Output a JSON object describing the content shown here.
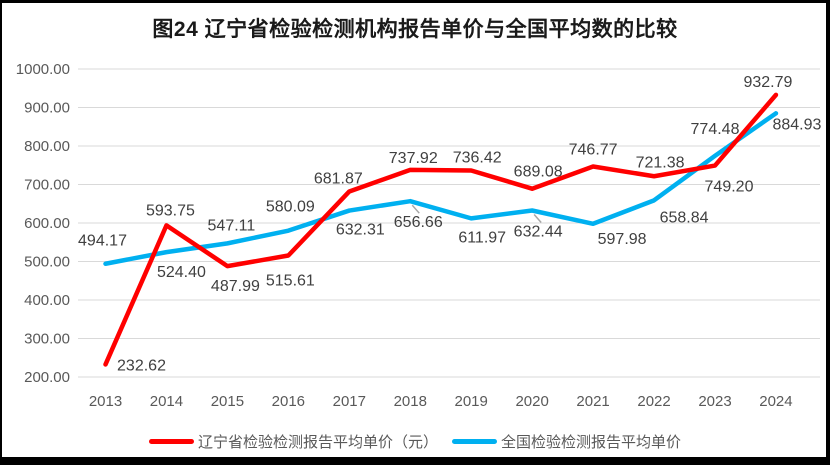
{
  "title": "图24 辽宁省检验检测机构报告单价与全国平均数的比较",
  "chart_data": {
    "type": "line",
    "title": "图24 辽宁省检验检测机构报告单价与全国平均数的比较",
    "x": [
      "2013",
      "2014",
      "2015",
      "2016",
      "2017",
      "2018",
      "2019",
      "2020",
      "2021",
      "2022",
      "2023",
      "2024"
    ],
    "ylim": [
      200,
      1000
    ],
    "ytick_step": 100,
    "ytick_labels": [
      "200.00",
      "300.00",
      "400.00",
      "500.00",
      "600.00",
      "700.00",
      "800.00",
      "900.00",
      "1000.00"
    ],
    "grid": true,
    "legend_position": "bottom",
    "series": [
      {
        "name": "辽宁省检验检测报告平均单价（元）",
        "color": "#FF0000",
        "values": [
          232.62,
          593.75,
          487.99,
          515.61,
          681.87,
          737.92,
          736.42,
          689.08,
          746.77,
          721.38,
          749.2,
          932.79
        ],
        "label_offsets": [
          [
            36,
            6
          ],
          [
            4,
            -10
          ],
          [
            8,
            25
          ],
          [
            2,
            30
          ],
          [
            -11,
            -8
          ],
          [
            3,
            -7
          ],
          [
            6,
            -8
          ],
          [
            6,
            -12
          ],
          [
            0,
            -12
          ],
          [
            6,
            -9
          ],
          [
            14,
            26
          ],
          [
            -8,
            -8
          ]
        ],
        "leader_indices": []
      },
      {
        "name": "全国检验检测报告平均单价",
        "color": "#00B0F0",
        "values": [
          494.17,
          524.4,
          547.11,
          580.09,
          632.31,
          656.66,
          611.97,
          632.44,
          597.98,
          658.84,
          774.48,
          884.93
        ],
        "label_offsets": [
          [
            -3,
            -18
          ],
          [
            15,
            25
          ],
          [
            4,
            -13
          ],
          [
            2,
            -19
          ],
          [
            11,
            24
          ],
          [
            8,
            26
          ],
          [
            11,
            24
          ],
          [
            6,
            26
          ],
          [
            29,
            20
          ],
          [
            30,
            22
          ],
          [
            0,
            -22
          ],
          [
            21,
            16
          ]
        ],
        "leader_indices": [
          5,
          7
        ]
      }
    ],
    "colors": {
      "gridline": "#D9D9D9",
      "axis_text": "#595959",
      "data_label": "#404040",
      "leader": "#A6A6A6"
    }
  },
  "frame": {
    "border_color": "#000000"
  }
}
